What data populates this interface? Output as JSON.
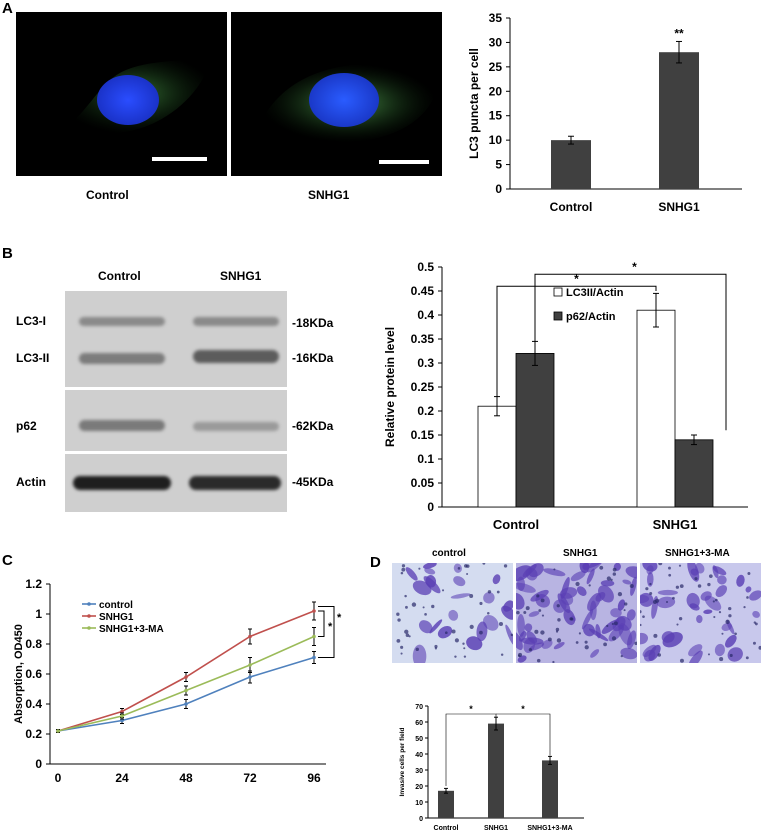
{
  "panels": {
    "a": {
      "letter": "A",
      "image_labels": [
        "Control",
        "SNHG1"
      ],
      "chart_data": {
        "type": "bar",
        "categories": [
          "Control",
          "SNHG1"
        ],
        "values": [
          10,
          28
        ],
        "errors": [
          0.8,
          2.2
        ],
        "significance": [
          "",
          "**"
        ],
        "ylabel": "LC3 puncta per cell",
        "ylim": [
          0,
          35
        ],
        "yticks": [
          0,
          5,
          10,
          15,
          20,
          25,
          30,
          35
        ]
      }
    },
    "b": {
      "letter": "B",
      "blot": {
        "lanes": [
          "Control",
          "SNHG1"
        ],
        "proteins": [
          "LC3-I",
          "LC3-II",
          "p62",
          "Actin"
        ],
        "weights": [
          "-18KDa",
          "-16KDa",
          "-62KDa",
          "-45KDa"
        ]
      },
      "chart_data": {
        "type": "bar",
        "categories": [
          "Control",
          "SNHG1"
        ],
        "series": [
          {
            "name": "LC3II/Actin",
            "values": [
              0.21,
              0.41
            ],
            "errors": [
              0.02,
              0.035
            ],
            "color": "#ffffff"
          },
          {
            "name": "p62/Actin",
            "values": [
              0.32,
              0.14
            ],
            "errors": [
              0.025,
              0.01
            ],
            "color": "#404040"
          }
        ],
        "ylabel": "Relative  protein level",
        "ylim": [
          0,
          0.5
        ],
        "yticks": [
          "0",
          "0.05",
          "0.1",
          "0.15",
          "0.2",
          "0.25",
          "0.3",
          "0.35",
          "0.4",
          "0.45",
          "0.5"
        ],
        "significance": [
          "*",
          "*"
        ],
        "legend_position": "top-right"
      }
    },
    "c": {
      "letter": "C",
      "chart_data": {
        "type": "line",
        "x": [
          0,
          24,
          48,
          72,
          96
        ],
        "series": [
          {
            "name": "control",
            "values": [
              0.22,
              0.29,
              0.4,
              0.58,
              0.71
            ],
            "errors": [
              0.01,
              0.02,
              0.03,
              0.04,
              0.04
            ],
            "color": "#4f81bd"
          },
          {
            "name": "SNHG1",
            "values": [
              0.22,
              0.35,
              0.58,
              0.85,
              1.02
            ],
            "errors": [
              0.01,
              0.02,
              0.03,
              0.05,
              0.06
            ],
            "color": "#c0504d"
          },
          {
            "name": "SNHG1+3-MA",
            "values": [
              0.22,
              0.32,
              0.49,
              0.66,
              0.85
            ],
            "errors": [
              0.01,
              0.02,
              0.03,
              0.05,
              0.06
            ],
            "color": "#9bbb59"
          }
        ],
        "ylabel": "Absorption, OD450",
        "ylim": [
          0,
          1.2
        ],
        "yticks": [
          "0",
          "0.2",
          "0.4",
          "0.6",
          "0.8",
          "1",
          "1.2"
        ],
        "xticks": [
          "0",
          "24",
          "48",
          "72",
          "96"
        ],
        "significance": [
          "*",
          "*"
        ],
        "legend_position": "top-left"
      }
    },
    "d": {
      "letter": "D",
      "image_labels": [
        "control",
        "SNHG1",
        "SNHG1+3-MA"
      ],
      "chart_data": {
        "type": "bar",
        "categories": [
          "Control",
          "SNHG1",
          "SNHG1+3-MA"
        ],
        "values": [
          17,
          59,
          36
        ],
        "errors": [
          1.5,
          4,
          2.5
        ],
        "ylabel": "Invasive cells per field",
        "ylim": [
          0,
          70
        ],
        "yticks": [
          "0",
          "10",
          "20",
          "30",
          "40",
          "50",
          "60",
          "70"
        ],
        "significance": [
          "*",
          "*"
        ]
      }
    }
  }
}
